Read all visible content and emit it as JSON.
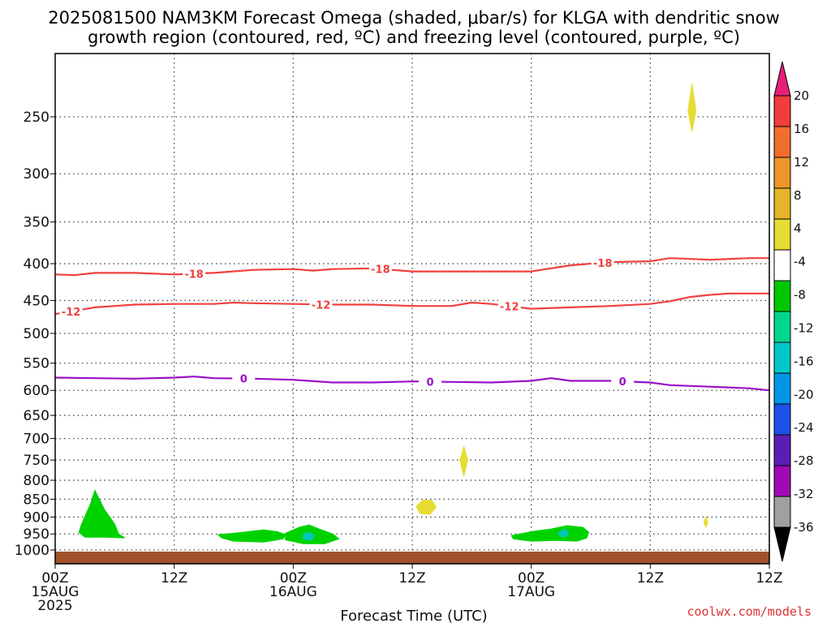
{
  "title": {
    "line1": "2025081500 NAM3KM Forecast Omega (shaded, μbar/s) for KLGA with dendritic snow",
    "line2": "growth region (contoured, red, ºC) and freezing level (contoured, purple, ºC)"
  },
  "credit": "coolwx.com/models",
  "colors": {
    "red_contour": "#f04040",
    "purple_contour": "#9a10c8",
    "ground": "#a0522d",
    "green": "#00d200",
    "teal": "#00c8b4",
    "yellow": "#e6dc32"
  },
  "chart_data": {
    "type": "time-pressure cross-section",
    "xlabel": "Forecast Time (UTC)",
    "ylabel": "",
    "x_range_hours": [
      0,
      36
    ],
    "y_range_hpa": [
      200,
      1030
    ],
    "y_scale": "log",
    "grid": true,
    "x_ticks": [
      {
        "hour": 0,
        "lines": [
          "00Z",
          "15AUG",
          "2025"
        ]
      },
      {
        "hour": 6,
        "lines": [
          "12Z"
        ]
      },
      {
        "hour": 12,
        "lines": [
          "00Z",
          "16AUG"
        ]
      },
      {
        "hour": 18,
        "lines": [
          "12Z"
        ]
      },
      {
        "hour": 24,
        "lines": [
          "00Z",
          "17AUG"
        ]
      },
      {
        "hour": 30,
        "lines": [
          "12Z"
        ]
      }
    ],
    "x_ticks_labels_unused": [],
    "y_ticks": [
      250,
      300,
      350,
      400,
      450,
      500,
      550,
      600,
      650,
      700,
      750,
      800,
      850,
      900,
      950,
      1000
    ],
    "colorbar": {
      "units": "μbar/s",
      "labels": [
        "20",
        "16",
        "12",
        "8",
        "4",
        "-4",
        "-8",
        "-12",
        "-16",
        "-20",
        "-24",
        "-28",
        "-32",
        "-36"
      ],
      "bins": [
        {
          "color": "#e61e78",
          "range": "> 20"
        },
        {
          "color": "#f03c3c",
          "range": "16 to 20"
        },
        {
          "color": "#f06e2d",
          "range": "12 to 16"
        },
        {
          "color": "#ec9628",
          "range": "8 to 12"
        },
        {
          "color": "#e6b428",
          "range": "4 to 8"
        },
        {
          "color": "#e6dc32",
          "range": "4"
        },
        {
          "color": "#ffffff",
          "range": "-4 to 4"
        },
        {
          "color": "#00c800",
          "range": "-8 to -4"
        },
        {
          "color": "#00d78c",
          "range": "-12 to -8"
        },
        {
          "color": "#00c8c8",
          "range": "-16 to -12"
        },
        {
          "color": "#0096e6",
          "range": "-20 to -16"
        },
        {
          "color": "#1e50e6",
          "range": "-24 to -20"
        },
        {
          "color": "#5a1eb4",
          "range": "-28 to -24"
        },
        {
          "color": "#a00ab4",
          "range": "-32 to -28"
        },
        {
          "color": "#a0a0a0",
          "range": "-36 to -32"
        },
        {
          "color": "#000000",
          "range": "< -36"
        }
      ]
    },
    "contours": [
      {
        "label": "-18",
        "color": "#f04040",
        "label_hours": [
          7,
          16.4,
          27.6
        ],
        "points": [
          [
            0,
            414
          ],
          [
            1,
            415
          ],
          [
            2,
            412
          ],
          [
            4,
            412
          ],
          [
            6,
            414
          ],
          [
            8,
            412
          ],
          [
            10,
            408
          ],
          [
            12,
            407
          ],
          [
            13,
            409
          ],
          [
            14,
            407
          ],
          [
            16,
            406
          ],
          [
            18,
            410
          ],
          [
            20,
            410
          ],
          [
            22,
            410
          ],
          [
            24,
            410
          ],
          [
            26,
            402
          ],
          [
            28,
            398
          ],
          [
            30,
            397
          ],
          [
            31,
            393
          ],
          [
            33,
            395
          ],
          [
            35,
            393
          ],
          [
            36,
            393
          ]
        ]
      },
      {
        "label": "-12",
        "color": "#f04040",
        "label_hours": [
          0.8,
          13.4,
          22.9
        ],
        "points": [
          [
            0,
            470
          ],
          [
            1,
            465
          ],
          [
            2,
            460
          ],
          [
            4,
            456
          ],
          [
            6,
            455
          ],
          [
            8,
            455
          ],
          [
            9,
            453
          ],
          [
            10,
            454
          ],
          [
            12,
            455
          ],
          [
            14,
            456
          ],
          [
            16,
            456
          ],
          [
            18,
            458
          ],
          [
            20,
            458
          ],
          [
            21,
            453
          ],
          [
            22,
            455
          ],
          [
            24,
            462
          ],
          [
            26,
            460
          ],
          [
            28,
            458
          ],
          [
            30,
            455
          ],
          [
            31,
            451
          ],
          [
            32,
            445
          ],
          [
            33,
            442
          ],
          [
            34,
            440
          ],
          [
            36,
            440
          ]
        ]
      },
      {
        "label": "0",
        "color": "#9a10c8",
        "label_hours": [
          9.5,
          18.9,
          28.6
        ],
        "points": [
          [
            0,
            576
          ],
          [
            2,
            577
          ],
          [
            4,
            578
          ],
          [
            6,
            576
          ],
          [
            7,
            574
          ],
          [
            8,
            577
          ],
          [
            10,
            578
          ],
          [
            12,
            580
          ],
          [
            14,
            585
          ],
          [
            16,
            585
          ],
          [
            18,
            583
          ],
          [
            20,
            584
          ],
          [
            22,
            585
          ],
          [
            24,
            582
          ],
          [
            25,
            577
          ],
          [
            26,
            582
          ],
          [
            28,
            582
          ],
          [
            30,
            585
          ],
          [
            31,
            590
          ],
          [
            33,
            593
          ],
          [
            35,
            596
          ],
          [
            36,
            600
          ]
        ]
      }
    ],
    "omega_blobs": [
      {
        "level": "-4 to -8",
        "color": "#00d200",
        "points": [
          [
            1.3,
            925
          ],
          [
            1.8,
            860
          ],
          [
            2.0,
            826
          ],
          [
            2.5,
            880
          ],
          [
            3.0,
            920
          ],
          [
            3.2,
            950
          ],
          [
            3.5,
            962
          ],
          [
            2.5,
            960
          ],
          [
            1.5,
            960
          ],
          [
            1.2,
            945
          ]
        ]
      },
      {
        "level": "-4 to -8",
        "color": "#00d200",
        "points": [
          [
            8.2,
            952
          ],
          [
            9.0,
            948
          ],
          [
            10.5,
            938
          ],
          [
            11.2,
            943
          ],
          [
            11.6,
            952
          ],
          [
            11.5,
            965
          ],
          [
            10.5,
            975
          ],
          [
            9.0,
            972
          ],
          [
            8.4,
            962
          ]
        ]
      },
      {
        "level": "-4 to -8",
        "color": "#00d200",
        "points": [
          [
            11.6,
            948
          ],
          [
            12.3,
            930
          ],
          [
            12.8,
            923
          ],
          [
            13.3,
            935
          ],
          [
            14.0,
            950
          ],
          [
            14.3,
            965
          ],
          [
            13.6,
            980
          ],
          [
            12.5,
            980
          ],
          [
            11.6,
            968
          ]
        ]
      },
      {
        "level": "-8 to -12",
        "color": "#00c8b4",
        "points": [
          [
            12.5,
            950
          ],
          [
            12.8,
            945
          ],
          [
            13.1,
            955
          ],
          [
            12.9,
            970
          ],
          [
            12.5,
            965
          ]
        ]
      },
      {
        "level": "-4 to -8",
        "color": "#00d200",
        "points": [
          [
            23.0,
            955
          ],
          [
            24.0,
            943
          ],
          [
            25.0,
            935
          ],
          [
            25.8,
            925
          ],
          [
            26.6,
            930
          ],
          [
            26.9,
            945
          ],
          [
            26.8,
            962
          ],
          [
            26.3,
            972
          ],
          [
            25.3,
            970
          ],
          [
            24.0,
            972
          ],
          [
            23.1,
            965
          ]
        ]
      },
      {
        "level": "-8 to -12",
        "color": "#00c8b4",
        "points": [
          [
            25.4,
            945
          ],
          [
            25.7,
            935
          ],
          [
            25.9,
            948
          ],
          [
            25.7,
            960
          ],
          [
            25.4,
            955
          ]
        ]
      },
      {
        "level": "4 to 8",
        "color": "#e6dc32",
        "points": [
          [
            31.9,
            245
          ],
          [
            32.1,
            225
          ],
          [
            32.3,
            245
          ],
          [
            32.1,
            262
          ]
        ]
      },
      {
        "level": "4 to 8",
        "color": "#e6dc32",
        "points": [
          [
            20.4,
            750
          ],
          [
            20.6,
            718
          ],
          [
            20.8,
            750
          ],
          [
            20.6,
            790
          ]
        ]
      },
      {
        "level": "4 to 8",
        "color": "#e6dc32",
        "points": [
          [
            18.2,
            870
          ],
          [
            18.5,
            853
          ],
          [
            19.0,
            853
          ],
          [
            19.2,
            872
          ],
          [
            18.9,
            892
          ],
          [
            18.4,
            890
          ]
        ]
      },
      {
        "level": "4 to 8",
        "color": "#e6dc32",
        "points": [
          [
            32.7,
            915
          ],
          [
            32.8,
            898
          ],
          [
            32.9,
            915
          ],
          [
            32.8,
            930
          ]
        ]
      }
    ]
  }
}
